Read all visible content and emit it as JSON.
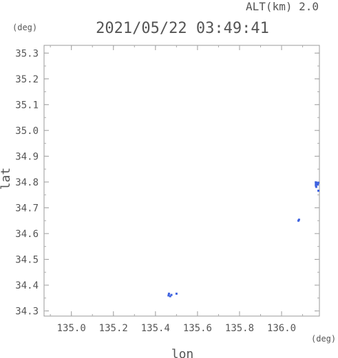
{
  "chart_data": {
    "type": "scatter",
    "header": {
      "alt_label": "ALT(km) 2.0",
      "timestamp": "2021/05/22 03:49:41"
    },
    "xlabel": "lon",
    "ylabel": "lat",
    "x_unit": "(deg)",
    "y_unit": "(deg)",
    "xlim": [
      134.87,
      136.18
    ],
    "ylim": [
      34.28,
      35.33
    ],
    "x_ticks": [
      135.0,
      135.2,
      135.4,
      135.6,
      135.8,
      136.0
    ],
    "y_ticks": [
      34.3,
      34.4,
      34.5,
      34.6,
      34.7,
      34.8,
      34.9,
      35.0,
      35.1,
      35.2,
      35.3
    ],
    "grid": false,
    "point_color": "#3f63e0",
    "points": [
      {
        "x": 136.163,
        "y": 34.799
      },
      {
        "x": 136.167,
        "y": 34.797
      },
      {
        "x": 136.171,
        "y": 34.797
      },
      {
        "x": 136.175,
        "y": 34.797
      },
      {
        "x": 136.163,
        "y": 34.792
      },
      {
        "x": 136.167,
        "y": 34.79
      },
      {
        "x": 136.172,
        "y": 34.79
      },
      {
        "x": 136.163,
        "y": 34.786
      },
      {
        "x": 136.165,
        "y": 34.781
      },
      {
        "x": 136.175,
        "y": 34.766
      },
      {
        "x": 136.083,
        "y": 34.654
      },
      {
        "x": 136.08,
        "y": 34.65
      },
      {
        "x": 135.464,
        "y": 34.367
      },
      {
        "x": 135.462,
        "y": 34.36
      },
      {
        "x": 135.47,
        "y": 34.357
      },
      {
        "x": 135.476,
        "y": 34.362
      },
      {
        "x": 135.5,
        "y": 34.367
      }
    ]
  }
}
